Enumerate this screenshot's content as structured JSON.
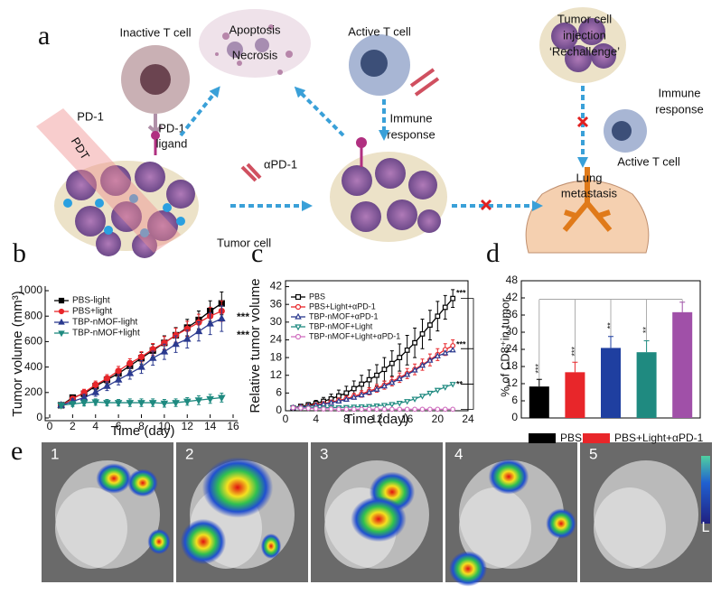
{
  "panel_a": {
    "label": "a",
    "inactive_t_cell": "Inactive T cell",
    "apoptosis": "Apoptosis",
    "necrosis": "Necrosis",
    "active_t_cell": "Active T cell",
    "rechallenge": [
      "Tumor cell",
      "injection",
      "‘Rechallenge’"
    ],
    "immune_response": [
      "Immune",
      "response"
    ],
    "immune_response_2": [
      "Immune",
      "response"
    ],
    "pd1": "PD-1",
    "pd1_ligand": [
      "PD-1",
      "ligand"
    ],
    "pdt": "PDT",
    "anti_pd1": "αPD-1",
    "tumor_cell": "Tumor cell",
    "lung_metastasis": [
      "Lung",
      "metastasis"
    ],
    "active_t_cell_2": "Active T cell"
  },
  "chart_data": [
    {
      "type": "line",
      "panel": "b",
      "xlabel": "Time (day)",
      "ylabel": "Tumor volume (mm³)",
      "xlim": [
        0,
        16
      ],
      "ylim": [
        0,
        1000
      ],
      "xticks": [
        0,
        2,
        4,
        6,
        8,
        10,
        12,
        14,
        16
      ],
      "yticks": [
        0,
        200,
        400,
        600,
        800,
        1000
      ],
      "x": [
        1,
        2,
        3,
        4,
        5,
        6,
        7,
        8,
        9,
        10,
        11,
        12,
        13,
        14,
        15
      ],
      "series": [
        {
          "name": "PBS-light",
          "color": "#000000",
          "marker": "square",
          "filled": true,
          "values": [
            100,
            160,
            190,
            250,
            300,
            350,
            410,
            470,
            530,
            590,
            650,
            710,
            770,
            840,
            900
          ],
          "errors": [
            15,
            20,
            25,
            30,
            30,
            35,
            40,
            45,
            50,
            55,
            60,
            65,
            70,
            80,
            90
          ]
        },
        {
          "name": "PBS+light",
          "color": "#e8262a",
          "marker": "circle",
          "filled": true,
          "values": [
            100,
            150,
            200,
            260,
            310,
            370,
            430,
            480,
            540,
            590,
            650,
            700,
            750,
            800,
            840
          ],
          "errors": [
            15,
            20,
            25,
            30,
            30,
            35,
            35,
            40,
            45,
            50,
            55,
            60,
            65,
            70,
            80
          ]
        },
        {
          "name": "TBP-nMOF-light",
          "color": "#2b3a8f",
          "marker": "triangle",
          "filled": true,
          "values": [
            100,
            130,
            160,
            200,
            250,
            300,
            350,
            400,
            470,
            520,
            580,
            620,
            680,
            740,
            780
          ],
          "errors": [
            15,
            20,
            25,
            30,
            35,
            40,
            45,
            50,
            55,
            60,
            65,
            70,
            75,
            85,
            100
          ]
        },
        {
          "name": "TBP-nMOF+light",
          "color": "#1f8a80",
          "marker": "triangle-down",
          "filled": true,
          "values": [
            100,
            110,
            120,
            125,
            120,
            120,
            120,
            120,
            120,
            115,
            120,
            130,
            140,
            150,
            160
          ],
          "errors": [
            20,
            20,
            25,
            25,
            25,
            25,
            30,
            30,
            30,
            30,
            30,
            30,
            35,
            35,
            35
          ]
        }
      ],
      "annotations": [
        "***",
        "***"
      ]
    },
    {
      "type": "line",
      "panel": "c",
      "xlabel": "Time (day)",
      "ylabel": "Relative  tumor  volume",
      "xlim": [
        0,
        24
      ],
      "ylim": [
        0,
        44
      ],
      "xticks": [
        0,
        4,
        8,
        12,
        16,
        20,
        24
      ],
      "yticks": [
        0,
        6,
        12,
        18,
        24,
        30,
        36,
        42
      ],
      "x": [
        1,
        2,
        3,
        4,
        5,
        6,
        7,
        8,
        9,
        10,
        11,
        12,
        13,
        14,
        15,
        16,
        17,
        18,
        19,
        20,
        21,
        22
      ],
      "series": [
        {
          "name": "PBS",
          "color": "#000000",
          "marker": "square",
          "filled": false,
          "values": [
            1,
            1.5,
            2,
            2.5,
            3.2,
            4,
            5,
            6,
            7.5,
            9,
            10.5,
            12,
            14,
            16,
            18,
            20.5,
            23,
            26,
            29,
            32,
            35,
            38
          ],
          "errors": [
            0.3,
            0.5,
            0.8,
            1,
            1.3,
            1.6,
            2,
            2.3,
            2.6,
            3,
            3.3,
            3.6,
            4,
            4.3,
            4.6,
            5,
            5,
            5,
            5,
            5,
            4,
            3
          ]
        },
        {
          "name": "PBS+Light+αPD-1",
          "color": "#e8262a",
          "marker": "circle",
          "filled": false,
          "values": [
            1,
            1.3,
            1.6,
            2,
            2.4,
            2.9,
            3.5,
            4.1,
            4.9,
            5.7,
            6.6,
            7.6,
            8.7,
            9.9,
            11.2,
            12.6,
            14,
            15.6,
            17.2,
            19,
            20.7,
            22
          ],
          "errors": [
            0.2,
            0.3,
            0.4,
            0.5,
            0.6,
            0.7,
            0.8,
            0.9,
            1,
            1.1,
            1.2,
            1.3,
            1.4,
            1.5,
            1.6,
            1.7,
            1.8,
            1.9,
            2,
            2,
            2,
            2
          ]
        },
        {
          "name": "TBP-nMOF+αPD-1",
          "color": "#2b3a8f",
          "marker": "triangle",
          "filled": false,
          "values": [
            1,
            1.2,
            1.5,
            1.8,
            2.2,
            2.7,
            3.2,
            3.8,
            4.5,
            5.3,
            6.2,
            7.2,
            8.3,
            9.5,
            10.8,
            12.2,
            13.7,
            15.3,
            17,
            18.5,
            19.5,
            20.5
          ]
        },
        {
          "name": "TBP-nMOF+Light",
          "color": "#1f8a80",
          "marker": "triangle-down",
          "filled": false,
          "values": [
            1,
            1,
            1,
            1,
            1,
            1.1,
            1.1,
            1.2,
            1.3,
            1.4,
            1.5,
            1.7,
            1.9,
            2.2,
            2.6,
            3.2,
            4,
            5,
            6,
            7,
            8,
            9
          ]
        },
        {
          "name": "TBP-nMOF+Light+αPD-1",
          "color": "#d070c0",
          "marker": "circle",
          "filled": false,
          "values": [
            1,
            0.9,
            0.8,
            0.7,
            0.6,
            0.6,
            0.5,
            0.5,
            0.5,
            0.5,
            0.5,
            0.5,
            0.5,
            0.5,
            0.5,
            0.5,
            0.5,
            0.5,
            0.5,
            0.5,
            0.5,
            0.5
          ]
        }
      ],
      "annotations": [
        "***",
        "***",
        "**"
      ]
    },
    {
      "type": "bar",
      "panel": "d",
      "ylabel": "% of CD8⁺in  tumor",
      "ylim": [
        0,
        48
      ],
      "yticks": [
        0,
        6,
        12,
        18,
        24,
        30,
        36,
        42,
        48
      ],
      "categories": [
        null,
        null,
        null,
        null,
        null
      ],
      "values": [
        11,
        16,
        24.5,
        23,
        37
      ],
      "errors": [
        2.5,
        3.5,
        4,
        4,
        3.5
      ],
      "colors": [
        "#000000",
        "#e8262a",
        "#1f3fa0",
        "#1f8a80",
        "#a050a8"
      ],
      "legend": [
        {
          "name": "PBS",
          "color": "#000000"
        },
        {
          "name": "PBS+Light+αPD-1",
          "color": "#e8262a"
        }
      ],
      "annotations": [
        "***",
        "***",
        "**",
        "**"
      ]
    }
  ],
  "panel_e": {
    "label": "e",
    "images": [
      "1",
      "2",
      "3",
      "4",
      "5"
    ],
    "scale_label": "L"
  }
}
